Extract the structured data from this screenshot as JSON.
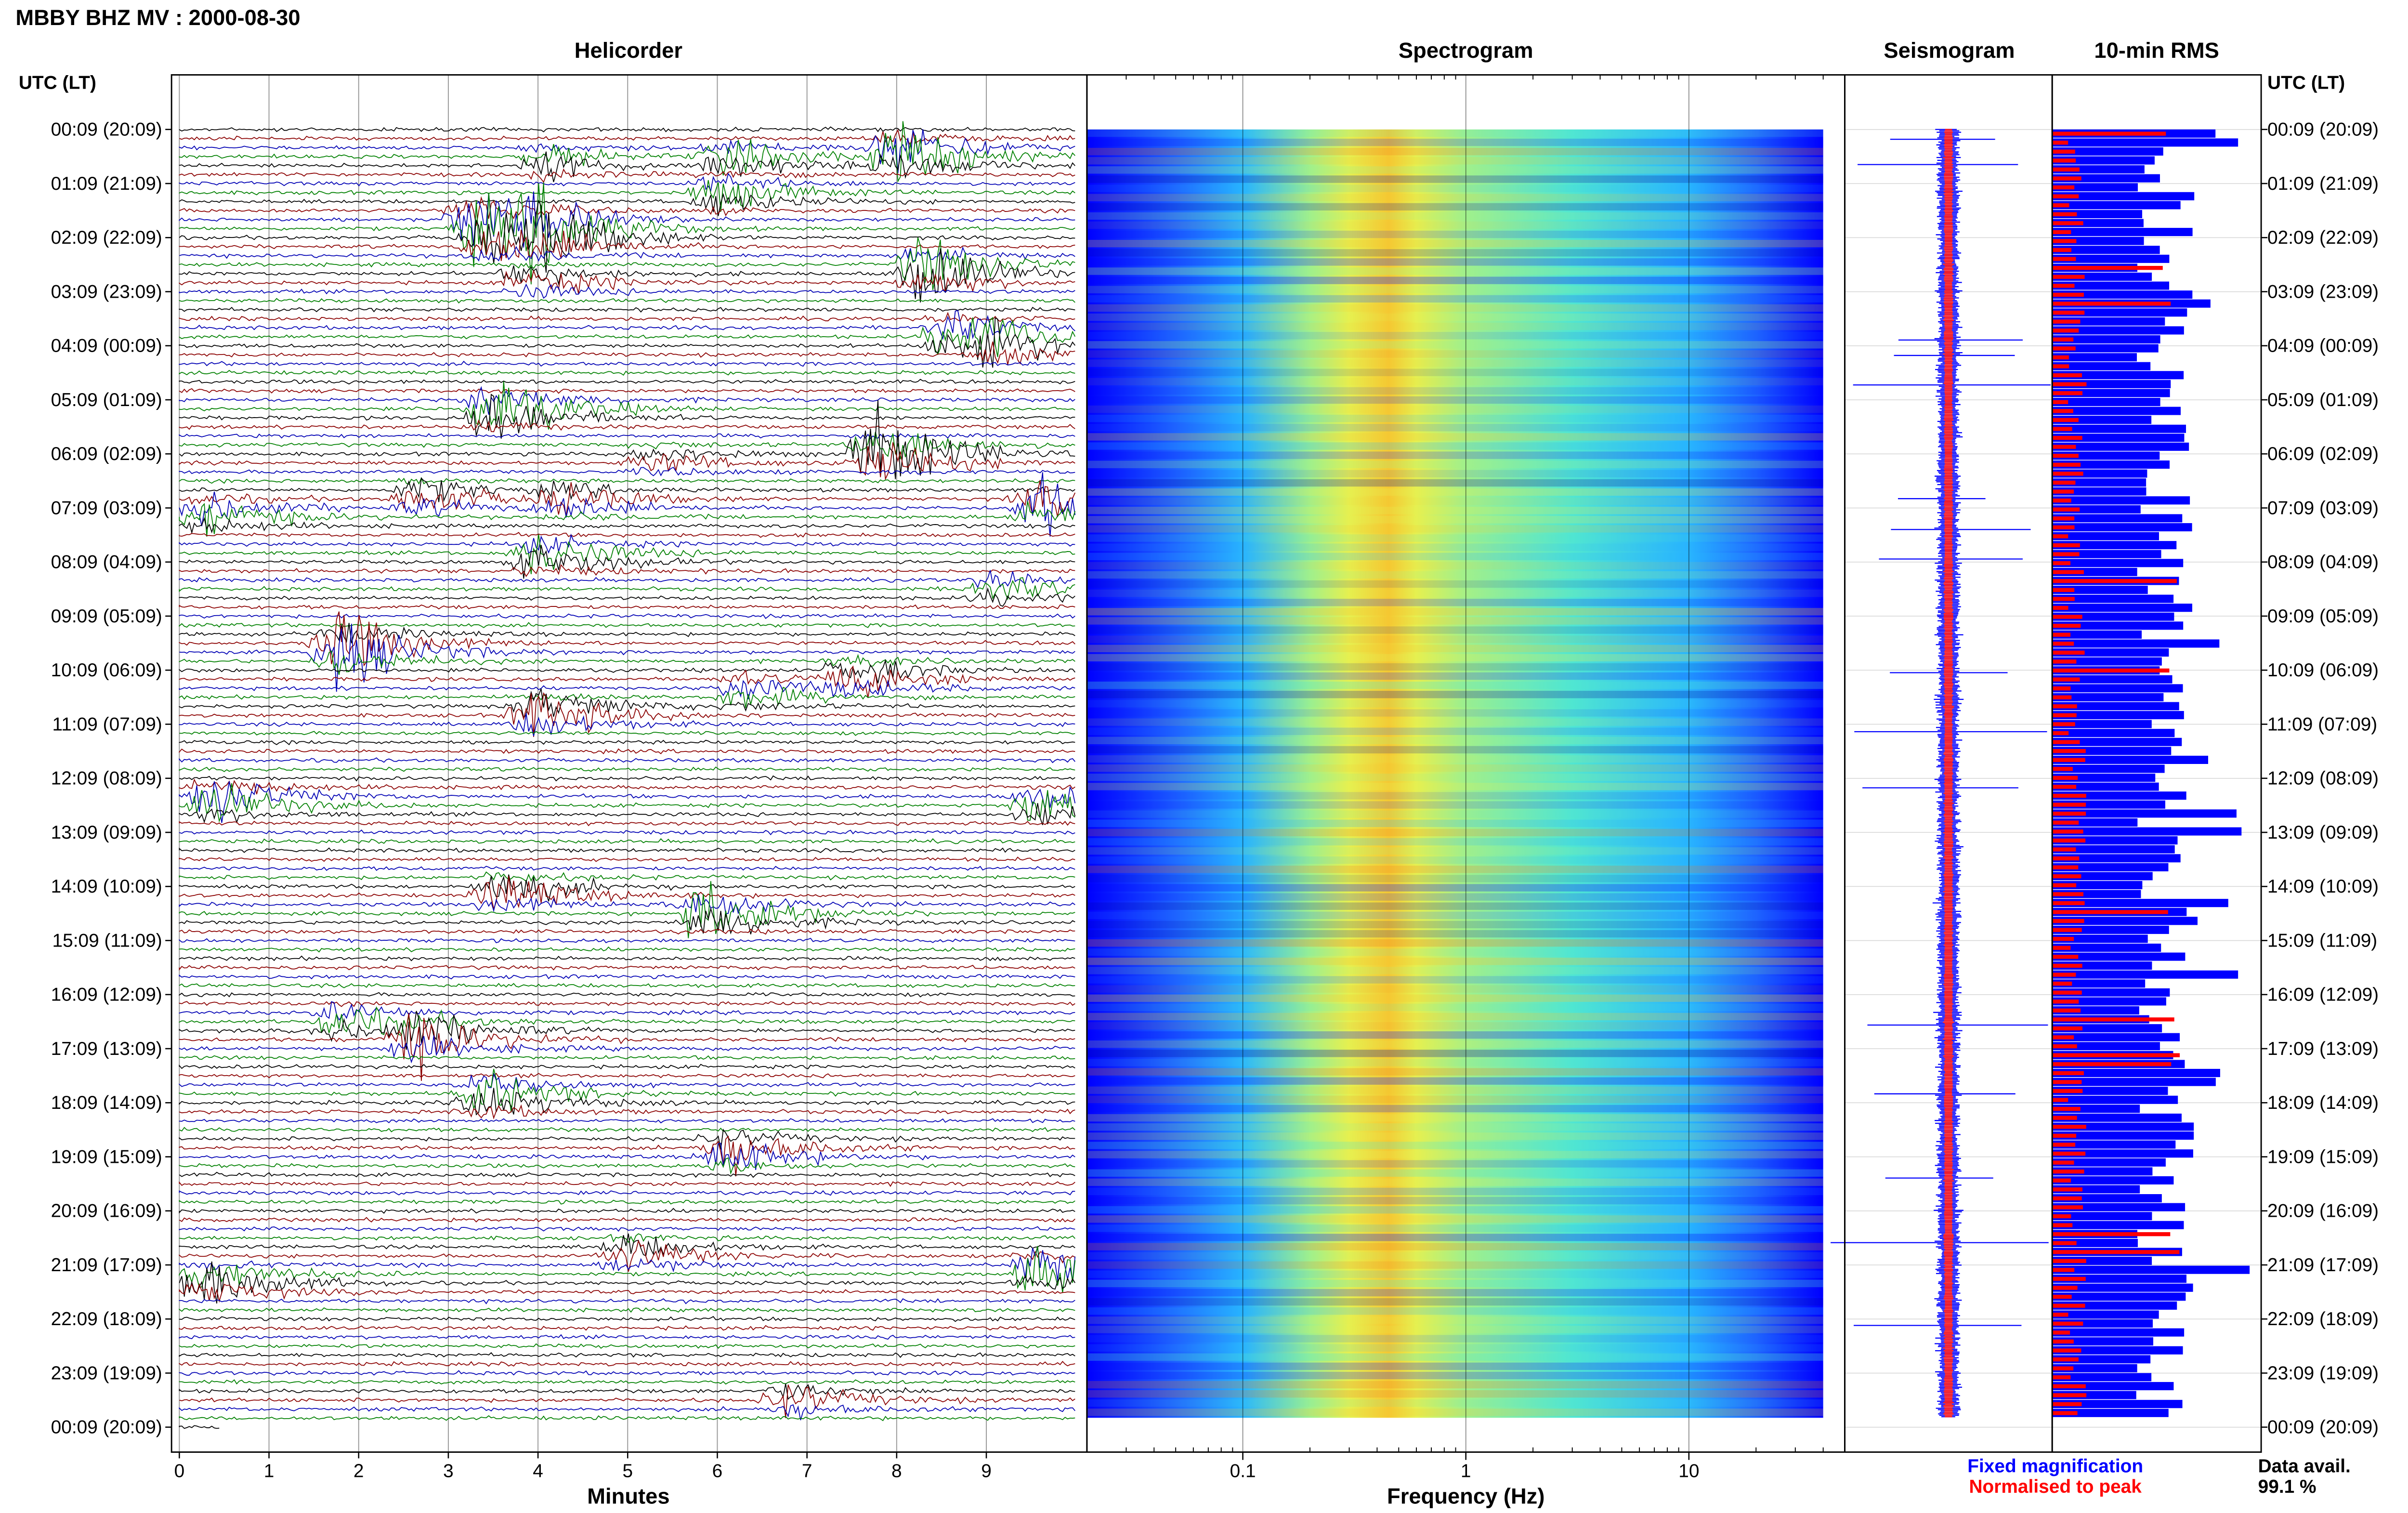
{
  "header": {
    "title": "MBBY BHZ MV : 2000-08-30"
  },
  "panels": {
    "helicorder": "Helicorder",
    "spectrogram": "Spectrogram",
    "seismogram": "Seismogram",
    "rms": "10-min RMS"
  },
  "axis_labels": {
    "time_left": "UTC (LT)",
    "time_right": "UTC (LT)",
    "minutes": "Minutes",
    "frequency": "Frequency (Hz)"
  },
  "legend": {
    "fixed": "Fixed magnification",
    "normalised": "Normalised to peak",
    "fixed_color": "#0000ff",
    "normalised_color": "#ff0000"
  },
  "data_availability": {
    "label": "Data avail.",
    "value": "99.1 %"
  },
  "chart_data": [
    {
      "type": "line",
      "title": "Helicorder",
      "xlabel": "Minutes",
      "x_ticks": [
        "0",
        "1",
        "2",
        "3",
        "4",
        "5",
        "6",
        "7",
        "8",
        "9"
      ],
      "xlim": [
        0,
        10
      ],
      "row_label_ticks": [
        "00:09 (20:09)",
        "01:09 (21:09)",
        "02:09 (22:09)",
        "03:09 (23:09)",
        "04:09 (00:09)",
        "05:09 (01:09)",
        "06:09 (02:09)",
        "07:09 (03:09)",
        "08:09 (04:09)",
        "09:09 (05:09)",
        "10:09 (06:09)",
        "11:09 (07:09)",
        "12:09 (08:09)",
        "13:09 (09:09)",
        "14:09 (10:09)",
        "15:09 (11:09)",
        "16:09 (12:09)",
        "17:09 (13:09)",
        "18:09 (14:09)",
        "19:09 (15:09)",
        "20:09 (16:09)",
        "21:09 (17:09)",
        "22:09 (18:09)",
        "23:09 (19:09)",
        "00:09 (20:09)"
      ],
      "trace_colors": [
        "#000000",
        "#8b0000",
        "#0000b4",
        "#008000"
      ],
      "traces_per_hour": 6,
      "events": [
        {
          "hour": 0.45,
          "minute": 8.0,
          "amp": 1.7,
          "color": "#008000"
        },
        {
          "hour": 0.55,
          "minute": 6.1,
          "amp": 0.9,
          "color": "#008000"
        },
        {
          "hour": 0.6,
          "minute": 4.1,
          "amp": 0.7,
          "color": "#000000"
        },
        {
          "hour": 1.2,
          "minute": 6.0,
          "amp": 0.9,
          "color": "#000000"
        },
        {
          "hour": 1.7,
          "minute": 3.3,
          "amp": 1.8,
          "color": "#008000"
        },
        {
          "hour": 1.9,
          "minute": 4.0,
          "amp": 1.8,
          "color": "#8b0000"
        },
        {
          "hour": 2.1,
          "minute": 3.5,
          "amp": 1.3,
          "color": "#0000b4"
        },
        {
          "hour": 2.6,
          "minute": 8.3,
          "amp": 1.8,
          "color": "#8b0000"
        },
        {
          "hour": 2.8,
          "minute": 3.9,
          "amp": 0.8,
          "color": "#0000b4"
        },
        {
          "hour": 3.8,
          "minute": 8.6,
          "amp": 1.3,
          "color": "#008000"
        },
        {
          "hour": 4.0,
          "minute": 9.0,
          "amp": 0.9,
          "color": "#000000"
        },
        {
          "hour": 5.2,
          "minute": 3.5,
          "amp": 1.8,
          "color": "#8b0000"
        },
        {
          "hour": 6.0,
          "minute": 7.8,
          "amp": 2.0,
          "color": "#008000"
        },
        {
          "hour": 6.1,
          "minute": 5.3,
          "amp": 0.6,
          "color": "#000000"
        },
        {
          "hour": 6.8,
          "minute": 2.7,
          "amp": 0.9,
          "color": "#8b0000"
        },
        {
          "hour": 6.9,
          "minute": 4.3,
          "amp": 0.8,
          "color": "#0000b4"
        },
        {
          "hour": 7.0,
          "minute": 9.6,
          "amp": 1.4,
          "color": "#008000"
        },
        {
          "hour": 7.1,
          "minute": 0.3,
          "amp": 1.1,
          "color": "#000000"
        },
        {
          "hour": 7.9,
          "minute": 4.0,
          "amp": 1.2,
          "color": "#000000"
        },
        {
          "hour": 8.5,
          "minute": 9.1,
          "amp": 0.7,
          "color": "#008000"
        },
        {
          "hour": 9.6,
          "minute": 1.8,
          "amp": 2.0,
          "color": "#008000"
        },
        {
          "hour": 10.1,
          "minute": 7.5,
          "amp": 1.0,
          "color": "#8b0000"
        },
        {
          "hour": 10.4,
          "minute": 6.3,
          "amp": 0.8,
          "color": "#000000"
        },
        {
          "hour": 10.8,
          "minute": 4.0,
          "amp": 1.4,
          "color": "#8b0000"
        },
        {
          "hour": 12.4,
          "minute": 0.4,
          "amp": 1.4,
          "color": "#000000"
        },
        {
          "hour": 12.5,
          "minute": 9.6,
          "amp": 1.1,
          "color": "#008000"
        },
        {
          "hour": 14.1,
          "minute": 3.6,
          "amp": 1.2,
          "color": "#0000b4"
        },
        {
          "hour": 14.5,
          "minute": 5.9,
          "amp": 1.6,
          "color": "#8b0000"
        },
        {
          "hour": 16.5,
          "minute": 1.8,
          "amp": 0.9,
          "color": "#000000"
        },
        {
          "hour": 16.8,
          "minute": 2.6,
          "amp": 1.5,
          "color": "#008000"
        },
        {
          "hour": 17.9,
          "minute": 3.4,
          "amp": 1.3,
          "color": "#0000b4"
        },
        {
          "hour": 18.9,
          "minute": 6.1,
          "amp": 1.3,
          "color": "#0000b4"
        },
        {
          "hour": 20.8,
          "minute": 5.0,
          "amp": 0.9,
          "color": "#8b0000"
        },
        {
          "hour": 21.1,
          "minute": 9.6,
          "amp": 1.5,
          "color": "#008000"
        },
        {
          "hour": 21.3,
          "minute": 0.3,
          "amp": 1.3,
          "color": "#000000"
        },
        {
          "hour": 23.5,
          "minute": 6.8,
          "amp": 0.7,
          "color": "#0000b4"
        }
      ]
    },
    {
      "type": "heatmap",
      "title": "Spectrogram",
      "xlabel": "Frequency (Hz)",
      "x_scale": "log",
      "x_ticks": [
        "0.1",
        "1",
        "10"
      ],
      "xlim": [
        0.02,
        50
      ],
      "peak_band_hz": [
        0.2,
        0.6
      ],
      "colormap": [
        "#00009c",
        "#0000ff",
        "#1e64ff",
        "#28b4ff",
        "#50e6d2",
        "#a0f08c",
        "#e6f050",
        "#f5c832",
        "#f0781e"
      ]
    },
    {
      "type": "line",
      "title": "Seismogram",
      "legend": [
        "Fixed magnification",
        "Normalised to peak"
      ],
      "colors": [
        "#0000ff",
        "#ff0000"
      ]
    },
    {
      "type": "bar",
      "title": "10-min RMS",
      "orientation": "horizontal",
      "series": [
        {
          "name": "Fixed magnification",
          "color": "#0000ff"
        },
        {
          "name": "Normalised to peak",
          "color": "#ff0000"
        }
      ]
    }
  ]
}
